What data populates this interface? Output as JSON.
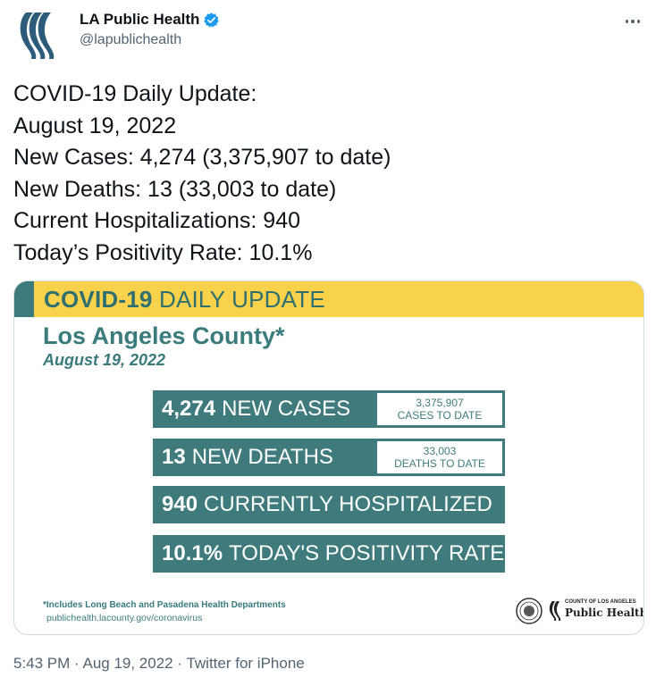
{
  "author": {
    "name": "LA Public Health",
    "handle": "@lapublichealth",
    "verified": true
  },
  "tweet": {
    "lines": [
      "COVID-19 Daily Update:",
      "August 19, 2022",
      "New Cases: 4,274 (3,375,907 to date)",
      "New Deaths: 13 (33,003 to date)",
      "Current Hospitalizations: 940",
      "Today’s Positivity Rate: 10.1%"
    ]
  },
  "card": {
    "banner_bold": "COVID-19",
    "banner_rest": "DAILY UPDATE",
    "county": "Los Angeles County*",
    "date": "August 19, 2022",
    "stats": [
      {
        "value": "4,274",
        "label": "NEW CASES",
        "sub_value": "3,375,907",
        "sub_label": "CASES TO DATE"
      },
      {
        "value": "13",
        "label": "NEW DEATHS",
        "sub_value": "33,003",
        "sub_label": "DEATHS TO DATE"
      },
      {
        "value": "940",
        "label": "CURRENTLY HOSPITALIZED"
      },
      {
        "value": "10.1%",
        "label": "TODAY'S POSITIVITY RATE"
      }
    ],
    "footnote": "*Includes Long Beach and Pasadena Health Departments",
    "link": "publichealth.lacounty.gov/coronavirus",
    "logo_small": "COUNTY OF LOS ANGELES",
    "logo_big": "Public Health"
  },
  "meta": {
    "time": "5:43 PM",
    "date": "Aug 19, 2022",
    "source": "Twitter for iPhone"
  },
  "colors": {
    "teal": "#3f7b7c",
    "yellow": "#f8d24a",
    "twitter_blue": "#1d9bf0",
    "gray": "#536471"
  },
  "icons": [
    "profile-avatar-icon",
    "verified-badge-icon",
    "more-options-icon",
    "county-seal-icon",
    "public-health-logo-icon"
  ]
}
